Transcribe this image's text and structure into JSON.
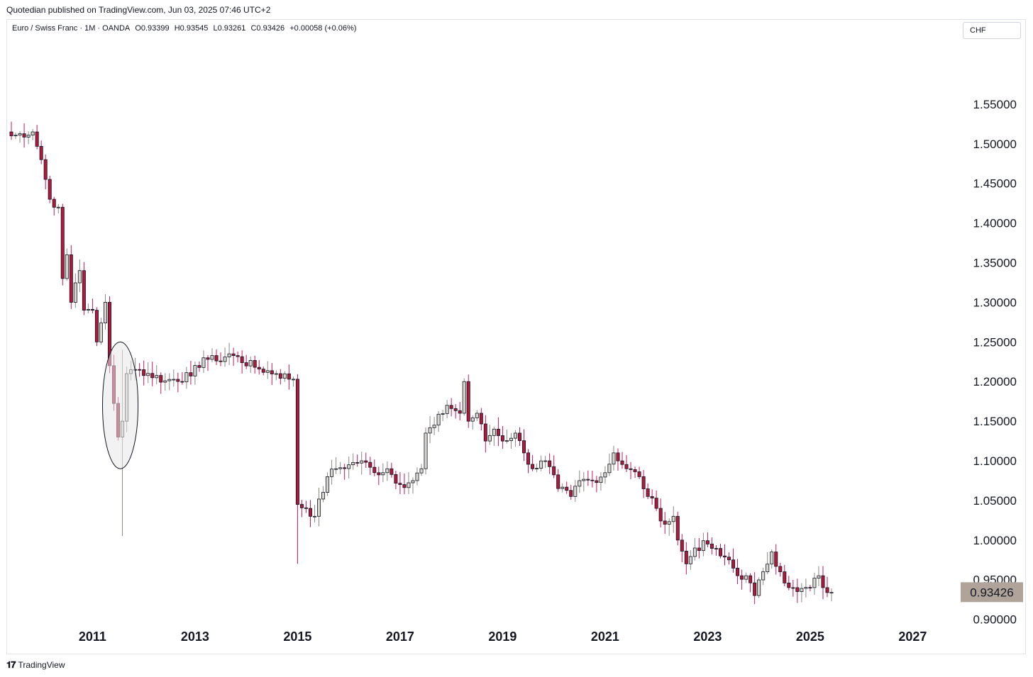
{
  "publisher_line": "Quotedian published on TradingView.com, Jun 03, 2025 07:46 UTC+2",
  "legend": {
    "symbol": "Euro / Swiss Franc · 1M · OANDA",
    "open": "O0.93399",
    "high": "H0.93545",
    "low": "L0.93261",
    "close": "C0.93426",
    "change": "+0.00058 (+0.06%)"
  },
  "currency_button": "CHF",
  "branding": "TradingView",
  "colors": {
    "up_fill": "#d9d5cf",
    "up_border": "#131722",
    "down_fill": "#b2183c",
    "down_border": "#131722",
    "wick_up": "#8d8780",
    "wick_down": "#c2185b",
    "last_price_bg": "#b0a49a",
    "highlight_fill": "#e8e8e8"
  },
  "chart_data": {
    "type": "candlestick",
    "title": "Euro / Swiss Franc · 1M · OANDA",
    "xlabel": "",
    "ylabel": "",
    "x_ticks": [
      "2011",
      "2013",
      "2015",
      "2017",
      "2019",
      "2021",
      "2023",
      "2025",
      "2027"
    ],
    "y_ticks": [
      "1.55000",
      "1.50000",
      "1.45000",
      "1.40000",
      "1.35000",
      "1.30000",
      "1.25000",
      "1.20000",
      "1.15000",
      "1.10000",
      "1.05000",
      "1.00000",
      "0.95000",
      "0.90000"
    ],
    "ylim": [
      0.88,
      1.585
    ],
    "xlim": [
      "2009-05",
      "2027-11"
    ],
    "last_price": "0.93426",
    "last_value": 0.93426,
    "annotation": {
      "type": "ellipse",
      "period": [
        "2011-06",
        "2011-09"
      ],
      "y_range": [
        1.09,
        1.25
      ]
    },
    "anchors": [
      [
        "2009-06",
        1.51
      ],
      [
        "2009-11",
        1.515
      ],
      [
        "2010-01",
        1.48
      ],
      [
        "2010-03",
        1.43
      ],
      [
        "2010-05",
        1.42
      ],
      [
        "2010-06",
        1.33
      ],
      [
        "2010-07",
        1.36
      ],
      [
        "2010-08",
        1.3
      ],
      [
        "2010-10",
        1.34
      ],
      [
        "2010-11",
        1.29
      ],
      [
        "2011-01",
        1.29
      ],
      [
        "2011-02",
        1.25
      ],
      [
        "2011-04",
        1.3
      ],
      [
        "2011-05",
        1.22
      ],
      [
        "2011-07",
        1.13
      ],
      [
        "2011-08",
        1.15
      ],
      [
        "2011-09",
        1.21
      ],
      [
        "2011-12",
        1.215
      ],
      [
        "2012-06",
        1.201
      ],
      [
        "2012-12",
        1.207
      ],
      [
        "2013-03",
        1.23
      ],
      [
        "2013-06",
        1.226
      ],
      [
        "2013-09",
        1.235
      ],
      [
        "2014-03",
        1.218
      ],
      [
        "2014-08",
        1.21
      ],
      [
        "2014-12",
        1.203
      ],
      [
        "2015-01",
        1.045
      ],
      [
        "2015-03",
        1.04
      ],
      [
        "2015-05",
        1.03
      ],
      [
        "2015-08",
        1.08
      ],
      [
        "2015-10",
        1.09
      ],
      [
        "2016-01",
        1.095
      ],
      [
        "2016-04",
        1.1
      ],
      [
        "2016-07",
        1.085
      ],
      [
        "2016-10",
        1.09
      ],
      [
        "2017-01",
        1.07
      ],
      [
        "2017-04",
        1.075
      ],
      [
        "2017-06",
        1.09
      ],
      [
        "2017-07",
        1.135
      ],
      [
        "2017-09",
        1.145
      ],
      [
        "2017-12",
        1.17
      ],
      [
        "2018-03",
        1.16
      ],
      [
        "2018-04",
        1.2
      ],
      [
        "2018-05",
        1.15
      ],
      [
        "2018-07",
        1.16
      ],
      [
        "2018-09",
        1.125
      ],
      [
        "2018-11",
        1.14
      ],
      [
        "2019-01",
        1.125
      ],
      [
        "2019-04",
        1.135
      ],
      [
        "2019-06",
        1.11
      ],
      [
        "2019-08",
        1.09
      ],
      [
        "2019-11",
        1.1
      ],
      [
        "2020-02",
        1.065
      ],
      [
        "2020-05",
        1.055
      ],
      [
        "2020-07",
        1.075
      ],
      [
        "2020-10",
        1.075
      ],
      [
        "2021-01",
        1.085
      ],
      [
        "2021-03",
        1.11
      ],
      [
        "2021-06",
        1.09
      ],
      [
        "2021-09",
        1.08
      ],
      [
        "2021-11",
        1.055
      ],
      [
        "2022-01",
        1.04
      ],
      [
        "2022-03",
        1.02
      ],
      [
        "2022-05",
        1.03
      ],
      [
        "2022-06",
        1.0
      ],
      [
        "2022-08",
        0.97
      ],
      [
        "2022-10",
        0.99
      ],
      [
        "2023-01",
        0.995
      ],
      [
        "2023-04",
        0.98
      ],
      [
        "2023-06",
        0.975
      ],
      [
        "2023-08",
        0.955
      ],
      [
        "2023-10",
        0.955
      ],
      [
        "2023-12",
        0.93
      ],
      [
        "2024-02",
        0.96
      ],
      [
        "2024-04",
        0.985
      ],
      [
        "2024-06",
        0.96
      ],
      [
        "2024-08",
        0.94
      ],
      [
        "2024-10",
        0.935
      ],
      [
        "2025-01",
        0.94
      ],
      [
        "2025-03",
        0.955
      ],
      [
        "2025-04",
        0.94
      ],
      [
        "2025-06",
        0.934
      ]
    ]
  }
}
